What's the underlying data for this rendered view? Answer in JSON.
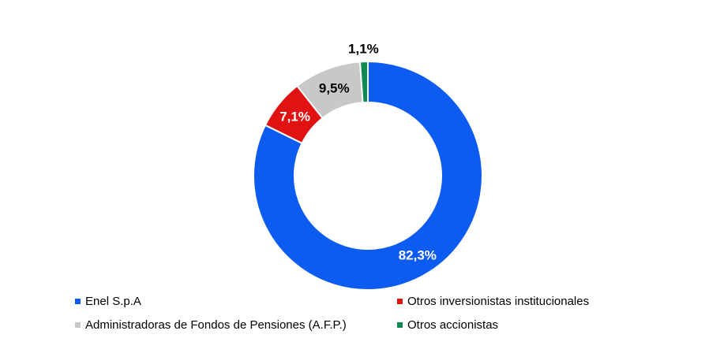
{
  "chart_data": {
    "type": "pie",
    "subtype": "donut",
    "title": "",
    "legend_position": "bottom",
    "legend_columns": 2,
    "direction": "clockwise",
    "start_angle_deg": 0,
    "total": 100.0,
    "slices": [
      {
        "label": "Enel S.p.A",
        "value": 82.3,
        "display_value": "82,3%",
        "color": "#0D5CF2",
        "label_color": "#FFFFFF",
        "label_position": "inside"
      },
      {
        "label": "Otros inversionistas institucionales",
        "value": 7.1,
        "display_value": "7,1%",
        "color": "#E11212",
        "label_color": "#FFFFFF",
        "label_position": "inside"
      },
      {
        "label": "Administradoras de Fondos de Pensiones (A.F.P.)",
        "value": 9.5,
        "display_value": "9,5%",
        "color": "#C8C8C8",
        "label_color": "#000000",
        "label_position": "inside"
      },
      {
        "label": "Otros accionistas",
        "value": 1.1,
        "display_value": "1,1%",
        "color": "#0F8B52",
        "label_color": "#000000",
        "label_position": "outside"
      }
    ]
  }
}
